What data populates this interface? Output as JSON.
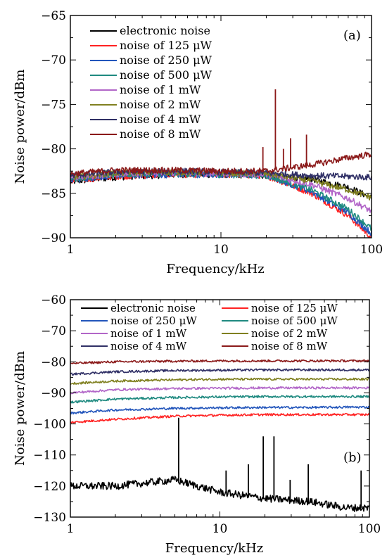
{
  "chart_data": [
    {
      "type": "line",
      "panel_label": "(a)",
      "xlabel": "Frequency/kHz",
      "ylabel": "Noise power/dBm",
      "xscale": "log",
      "xlim": [
        1,
        100
      ],
      "ylim": [
        -90,
        -65
      ],
      "xticks": [
        1,
        10,
        100
      ],
      "xtick_labels": [
        "1",
        "10",
        "100"
      ],
      "yticks": [
        -90,
        -85,
        -80,
        -75,
        -70,
        -65
      ],
      "ytick_labels": [
        "−90",
        "−85",
        "−80",
        "−75",
        "−70",
        "−65"
      ],
      "grid": false,
      "legend_placement": "top-left",
      "series": [
        {
          "name": "electronic noise",
          "color": "#000000",
          "x": [
            1,
            2,
            5,
            10,
            20,
            40,
            70,
            100
          ],
          "y": [
            -83.7,
            -83.2,
            -82.9,
            -82.9,
            -83.0,
            -83.4,
            -84.3,
            -85.5
          ]
        },
        {
          "name": "noise of 125 μW",
          "color": "#ff2222",
          "x": [
            1,
            2,
            5,
            10,
            20,
            40,
            70,
            100
          ],
          "y": [
            -83.6,
            -83.1,
            -82.9,
            -82.9,
            -83.0,
            -85.0,
            -87.5,
            -90.0
          ]
        },
        {
          "name": "noise of 250 μW",
          "color": "#2255bb",
          "x": [
            1,
            2,
            5,
            10,
            20,
            40,
            70,
            100
          ],
          "y": [
            -83.5,
            -83.0,
            -82.9,
            -82.9,
            -83.0,
            -84.8,
            -87.2,
            -89.5
          ]
        },
        {
          "name": "noise of 500 μW",
          "color": "#1f8a80",
          "x": [
            1,
            2,
            5,
            10,
            20,
            40,
            70,
            100
          ],
          "y": [
            -83.4,
            -82.9,
            -82.8,
            -82.9,
            -83.0,
            -84.6,
            -86.8,
            -89.0
          ]
        },
        {
          "name": "noise of 1 mW",
          "color": "#b266c8",
          "x": [
            1,
            2,
            5,
            10,
            20,
            40,
            70,
            100
          ],
          "y": [
            -83.3,
            -82.8,
            -82.7,
            -82.8,
            -82.9,
            -84.0,
            -85.6,
            -87.0
          ]
        },
        {
          "name": "noise of 2 mW",
          "color": "#808020",
          "x": [
            1,
            2,
            5,
            10,
            20,
            40,
            70,
            100
          ],
          "y": [
            -83.2,
            -82.7,
            -82.6,
            -82.7,
            -82.8,
            -83.6,
            -84.6,
            -85.5
          ]
        },
        {
          "name": "noise of 4 mW",
          "color": "#303066",
          "x": [
            1,
            2,
            5,
            10,
            20,
            40,
            70,
            100
          ],
          "y": [
            -83.0,
            -82.6,
            -82.5,
            -82.6,
            -82.7,
            -83.0,
            -83.1,
            -83.2
          ]
        },
        {
          "name": "noise of 8 mW",
          "color": "#8b1a1a",
          "x": [
            1,
            2,
            5,
            10,
            20,
            40,
            70,
            100
          ],
          "y": [
            -82.8,
            -82.4,
            -82.4,
            -82.5,
            -82.5,
            -81.8,
            -81.0,
            -80.6
          ]
        }
      ],
      "peaks": [
        {
          "x": 19,
          "y": -79.8
        },
        {
          "x": 23,
          "y": -73.3
        },
        {
          "x": 26,
          "y": -80.0
        },
        {
          "x": 29,
          "y": -78.8
        },
        {
          "x": 37,
          "y": -78.4
        }
      ]
    },
    {
      "type": "line",
      "panel_label": "(b)",
      "xlabel": "Frequency/kHz",
      "ylabel": "Noise power/dBm",
      "xscale": "log",
      "xlim": [
        1,
        100
      ],
      "ylim": [
        -130,
        -60
      ],
      "xticks": [
        1,
        10,
        100
      ],
      "xtick_labels": [
        "1",
        "10",
        "100"
      ],
      "yticks": [
        -130,
        -120,
        -110,
        -100,
        -90,
        -80,
        -70,
        -60
      ],
      "ytick_labels": [
        "−130",
        "−120",
        "−110",
        "−100",
        "−90",
        "−80",
        "−70",
        "−60"
      ],
      "grid": false,
      "legend_placement": "top",
      "series": [
        {
          "name": "electronic noise",
          "color": "#000000",
          "x": [
            1,
            2,
            5,
            10,
            20,
            40,
            70,
            100
          ],
          "y": [
            -120,
            -120,
            -118,
            -122,
            -124,
            -125,
            -127,
            -127
          ]
        },
        {
          "name": "noise of 125 μW",
          "color": "#ff2222",
          "x": [
            1,
            2,
            5,
            10,
            20,
            40,
            70,
            100
          ],
          "y": [
            -99.5,
            -98.5,
            -97.5,
            -97.2,
            -97.0,
            -97.0,
            -97.0,
            -97.0
          ]
        },
        {
          "name": "noise of 250 μW",
          "color": "#2255bb",
          "x": [
            1,
            2,
            5,
            10,
            20,
            40,
            70,
            100
          ],
          "y": [
            -96.5,
            -95.5,
            -95.0,
            -94.8,
            -94.7,
            -94.7,
            -94.6,
            -94.6
          ]
        },
        {
          "name": "noise of 500 μW",
          "color": "#1f8a80",
          "x": [
            1,
            2,
            5,
            10,
            20,
            40,
            70,
            100
          ],
          "y": [
            -93.0,
            -92.0,
            -91.5,
            -91.3,
            -91.2,
            -91.2,
            -91.2,
            -91.2
          ]
        },
        {
          "name": "noise of 1 mW",
          "color": "#b266c8",
          "x": [
            1,
            2,
            5,
            10,
            20,
            40,
            70,
            100
          ],
          "y": [
            -90.0,
            -89.0,
            -88.6,
            -88.5,
            -88.4,
            -88.4,
            -88.4,
            -88.4
          ]
        },
        {
          "name": "noise of 2 mW",
          "color": "#808020",
          "x": [
            1,
            2,
            5,
            10,
            20,
            40,
            70,
            100
          ],
          "y": [
            -87.0,
            -86.2,
            -85.8,
            -85.6,
            -85.6,
            -85.6,
            -85.6,
            -85.6
          ]
        },
        {
          "name": "noise of 4 mW",
          "color": "#303066",
          "x": [
            1,
            2,
            5,
            10,
            20,
            40,
            70,
            100
          ],
          "y": [
            -84.0,
            -83.2,
            -82.8,
            -82.7,
            -82.6,
            -82.6,
            -82.6,
            -82.6
          ]
        },
        {
          "name": "noise of 8 mW",
          "color": "#8b1a1a",
          "x": [
            1,
            2,
            5,
            10,
            20,
            40,
            70,
            100
          ],
          "y": [
            -80.5,
            -80.0,
            -79.8,
            -79.7,
            -79.7,
            -79.7,
            -79.7,
            -79.7
          ]
        }
      ],
      "peaks": [
        {
          "x": 5.3,
          "y": -98
        },
        {
          "x": 11,
          "y": -115
        },
        {
          "x": 15.5,
          "y": -113
        },
        {
          "x": 19.5,
          "y": -104
        },
        {
          "x": 23,
          "y": -104
        },
        {
          "x": 29.5,
          "y": -118
        },
        {
          "x": 39,
          "y": -113
        },
        {
          "x": 88,
          "y": -115
        }
      ]
    }
  ]
}
